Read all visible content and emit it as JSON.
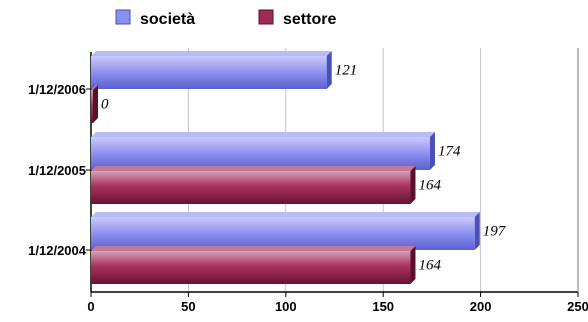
{
  "chart_data": {
    "type": "bar",
    "orientation": "horizontal",
    "categories": [
      "1/12/2006",
      "1/12/2005",
      "1/12/2004"
    ],
    "series": [
      {
        "name": "società",
        "values": [
          121,
          174,
          197
        ],
        "color": "#8a8ff0"
      },
      {
        "name": "settore",
        "values": [
          0,
          164,
          164
        ],
        "color": "#9e2a55"
      }
    ],
    "data_labels": {
      "società": [
        "121",
        "174",
        "197"
      ],
      "settore": [
        "0",
        "164",
        "164"
      ]
    },
    "xlim": [
      0,
      250
    ],
    "xticks": [
      0,
      50,
      100,
      150,
      200,
      250
    ],
    "xtick_labels": [
      "0",
      "50",
      "100",
      "150",
      "200",
      "250"
    ],
    "grid": "vertical",
    "legend_position": "top-left"
  }
}
